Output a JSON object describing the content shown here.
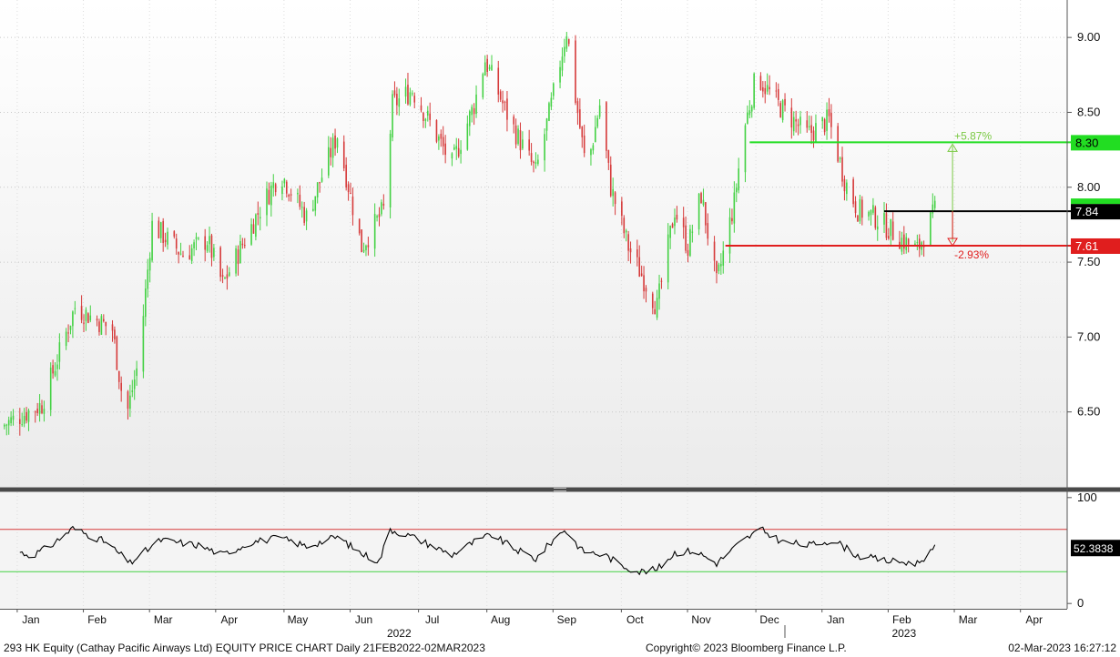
{
  "footer": {
    "left": "293 HK Equity (Cathay Pacific Airways Ltd) EQUITY PRICE CHART  Daily 21FEB2022-02MAR2023",
    "center": "Copyright© 2023 Bloomberg Finance L.P.",
    "right": "02-Mar-2023 16:27:12"
  },
  "chart_data": [
    {
      "type": "candlestick",
      "panel": "price",
      "x_range": [
        "2022-01-01",
        "2023-04-30"
      ],
      "ylim": [
        6.0,
        9.25
      ],
      "y_ticks": [
        6.5,
        7.0,
        7.5,
        8.0,
        8.5,
        9.0
      ],
      "y_tick_labels": [
        "6.50",
        "7.00",
        "7.50",
        "8.00",
        "8.50",
        "9.00"
      ],
      "grid": true,
      "colors": {
        "up": "#43d143",
        "down": "#d63a3a"
      },
      "anchors": [
        [
          "2022-01-01",
          6.4
        ],
        [
          "2022-01-20",
          6.55
        ],
        [
          "2022-02-04",
          7.2
        ],
        [
          "2022-02-21",
          7.05
        ],
        [
          "2022-02-27",
          6.45
        ],
        [
          "2022-03-05",
          6.85
        ],
        [
          "2022-03-11",
          7.75
        ],
        [
          "2022-03-25",
          7.55
        ],
        [
          "2022-04-05",
          7.65
        ],
        [
          "2022-04-12",
          7.35
        ],
        [
          "2022-04-27",
          7.8
        ],
        [
          "2022-05-08",
          8.1
        ],
        [
          "2022-05-20",
          7.8
        ],
        [
          "2022-06-03",
          8.35
        ],
        [
          "2022-06-14",
          7.6
        ],
        [
          "2022-06-24",
          7.85
        ],
        [
          "2022-06-28",
          8.55
        ],
        [
          "2022-07-07",
          8.65
        ],
        [
          "2022-07-25",
          8.15
        ],
        [
          "2022-08-04",
          8.55
        ],
        [
          "2022-08-09",
          8.85
        ],
        [
          "2022-08-20",
          8.45
        ],
        [
          "2022-09-01",
          8.1
        ],
        [
          "2022-09-08",
          8.55
        ],
        [
          "2022-09-15",
          9.05
        ],
        [
          "2022-09-19",
          8.6
        ],
        [
          "2022-09-24",
          8.1
        ],
        [
          "2022-09-30",
          8.55
        ],
        [
          "2022-10-05",
          8.0
        ],
        [
          "2022-10-13",
          7.6
        ],
        [
          "2022-10-26",
          7.2
        ],
        [
          "2022-11-03",
          7.85
        ],
        [
          "2022-11-09",
          7.6
        ],
        [
          "2022-11-15",
          7.95
        ],
        [
          "2022-11-22",
          7.35
        ],
        [
          "2022-11-30",
          7.9
        ],
        [
          "2022-12-04",
          8.35
        ],
        [
          "2022-12-10",
          8.75
        ],
        [
          "2022-12-20",
          8.55
        ],
        [
          "2023-01-02",
          8.35
        ],
        [
          "2023-01-12",
          8.45
        ],
        [
          "2023-01-19",
          8.05
        ],
        [
          "2023-01-25",
          7.85
        ],
        [
          "2023-02-02",
          7.8
        ],
        [
          "2023-02-14",
          7.65
        ],
        [
          "2023-02-21",
          7.58
        ],
        [
          "2023-03-01",
          7.84
        ]
      ],
      "lines": [
        {
          "label": "8.30",
          "value": 8.3,
          "from": "2022-12-07",
          "color": "#22dd22",
          "label_bg": "#22dd22",
          "label_color": "#000000"
        },
        {
          "label": "7.84",
          "value": 7.84,
          "from": "2023-02-06",
          "color": "#000000",
          "label_bg": "#000000",
          "label_color": "#ffffff"
        },
        {
          "label": "7.61",
          "value": 7.61,
          "from": "2022-11-26",
          "color": "#e01e1e",
          "label_bg": "#e01e1e",
          "label_color": "#ffffff"
        }
      ],
      "annotations": [
        {
          "text": "+5.87%",
          "x": "2023-03-09",
          "from": 7.61,
          "to": 8.3,
          "color": "#7ac943"
        },
        {
          "text": "-2.93%",
          "x": "2023-03-09",
          "from": 7.84,
          "to": 7.61,
          "color": "#e01e1e"
        }
      ]
    },
    {
      "type": "line",
      "panel": "rsi",
      "ylim": [
        -5,
        105
      ],
      "y_ticks": [
        0,
        100
      ],
      "y_tick_labels": [
        "0",
        "100"
      ],
      "hlines": [
        {
          "value": 70,
          "color": "#d63a3a"
        },
        {
          "value": 30,
          "color": "#43d143"
        }
      ],
      "last_value": "52.3838",
      "anchors": [
        [
          "2022-01-08",
          50
        ],
        [
          "2022-01-15",
          45
        ],
        [
          "2022-01-23",
          53
        ],
        [
          "2022-02-03",
          71
        ],
        [
          "2022-02-18",
          58
        ],
        [
          "2022-03-01",
          38
        ],
        [
          "2022-03-07",
          48
        ],
        [
          "2022-03-15",
          60
        ],
        [
          "2022-04-01",
          55
        ],
        [
          "2022-04-12",
          46
        ],
        [
          "2022-04-25",
          58
        ],
        [
          "2022-05-08",
          62
        ],
        [
          "2022-05-20",
          54
        ],
        [
          "2022-06-03",
          63
        ],
        [
          "2022-06-14",
          47
        ],
        [
          "2022-06-22",
          40
        ],
        [
          "2022-06-27",
          70
        ],
        [
          "2022-07-07",
          63
        ],
        [
          "2022-07-25",
          46
        ],
        [
          "2022-08-04",
          58
        ],
        [
          "2022-08-12",
          65
        ],
        [
          "2022-08-22",
          52
        ],
        [
          "2022-09-01",
          42
        ],
        [
          "2022-09-08",
          58
        ],
        [
          "2022-09-14",
          70
        ],
        [
          "2022-09-22",
          50
        ],
        [
          "2022-10-03",
          45
        ],
        [
          "2022-10-10",
          36
        ],
        [
          "2022-10-18",
          30
        ],
        [
          "2022-10-26",
          32
        ],
        [
          "2022-11-03",
          48
        ],
        [
          "2022-11-12",
          50
        ],
        [
          "2022-11-22",
          38
        ],
        [
          "2022-12-03",
          58
        ],
        [
          "2022-12-12",
          70
        ],
        [
          "2022-12-22",
          58
        ],
        [
          "2023-01-03",
          55
        ],
        [
          "2023-01-14",
          60
        ],
        [
          "2023-01-25",
          45
        ],
        [
          "2023-02-08",
          40
        ],
        [
          "2023-02-21",
          38
        ],
        [
          "2023-03-01",
          52
        ]
      ]
    }
  ],
  "x_axis": {
    "months": [
      {
        "label": "Jan",
        "date": "2022-01-15"
      },
      {
        "label": "Feb",
        "date": "2022-02-14"
      },
      {
        "label": "Mar",
        "date": "2022-03-16"
      },
      {
        "label": "Apr",
        "date": "2022-04-15"
      },
      {
        "label": "May",
        "date": "2022-05-16"
      },
      {
        "label": "Jun",
        "date": "2022-06-15"
      },
      {
        "label": "Jul",
        "date": "2022-07-16"
      },
      {
        "label": "Aug",
        "date": "2022-08-16"
      },
      {
        "label": "Sep",
        "date": "2022-09-15"
      },
      {
        "label": "Oct",
        "date": "2022-10-16"
      },
      {
        "label": "Nov",
        "date": "2022-11-15"
      },
      {
        "label": "Dec",
        "date": "2022-12-16"
      },
      {
        "label": "Jan",
        "date": "2023-01-15"
      },
      {
        "label": "Feb",
        "date": "2023-02-14"
      },
      {
        "label": "Mar",
        "date": "2023-03-16"
      },
      {
        "label": "Apr",
        "date": "2023-04-15"
      }
    ],
    "years": [
      {
        "label": "2022",
        "date": "2022-07-01"
      },
      {
        "label": "2023",
        "date": "2023-02-15"
      }
    ]
  }
}
